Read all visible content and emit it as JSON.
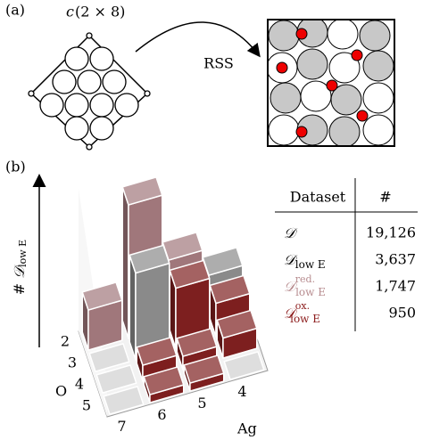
{
  "panel_a": {
    "label": "(a)",
    "structure_prefix": "c",
    "structure_cell": "(2 × 8)",
    "arrow_label": "RSS"
  },
  "panel_b": {
    "label": "(b)",
    "table": {
      "header": [
        "Dataset",
        "#"
      ],
      "rows": [
        {
          "name": "𝒟",
          "count": "19,126",
          "color": "#000000"
        },
        {
          "name": "𝒟",
          "sub": "low E",
          "count": "3,637",
          "color": "#000000"
        },
        {
          "name": "𝒟",
          "sup": "red.",
          "sub": "low E",
          "count": "1,747",
          "color": "#b78c8f"
        },
        {
          "name": "𝒟",
          "sup": "ox.",
          "sub": "low E",
          "count": "950",
          "color": "#8b1a1a"
        }
      ]
    }
  },
  "chart_data": {
    "type": "bar3d",
    "z_label": {
      "symbol": "#",
      "name": "𝒟",
      "sub": "low E"
    },
    "x_label": "Ag",
    "y_label": "O",
    "x_categories": [
      7,
      6,
      5,
      4
    ],
    "y_categories": [
      2,
      3,
      4,
      5
    ],
    "values": [
      [
        30,
        100,
        50,
        30
      ],
      [
        0,
        65,
        45,
        25
      ],
      [
        0,
        12,
        10,
        15
      ],
      [
        0,
        6,
        6,
        0
      ]
    ],
    "colors": [
      [
        "#a0777b",
        "#a0777b",
        "#a0777b",
        "#8a8a8a"
      ],
      [
        "#d0d0d0",
        "#8a8a8a",
        "#7d1f1f",
        "#7d1f1f"
      ],
      [
        "#d0d0d0",
        "#7d1f1f",
        "#7d1f1f",
        "#7d1f1f"
      ],
      [
        "#d0d0d0",
        "#7d1f1f",
        "#7d1f1f",
        "#d0d0d0"
      ]
    ]
  }
}
